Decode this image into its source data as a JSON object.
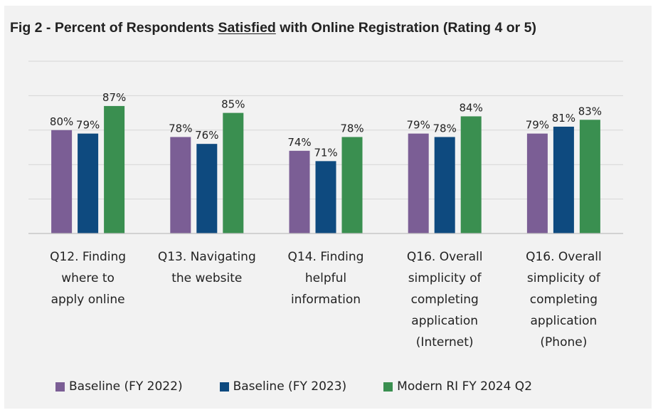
{
  "chart_data": {
    "type": "bar",
    "title_parts": {
      "before": "Fig 2 - Percent of Respondents ",
      "emphasis": "Satisfied",
      "after": " with Online Registration (Rating 4 or 5)"
    },
    "categories": [
      [
        "Q12. Finding",
        "where to",
        "apply online"
      ],
      [
        "Q13. Navigating",
        "the website"
      ],
      [
        "Q14. Finding",
        "helpful",
        "information"
      ],
      [
        "Q16. Overall",
        "simplicity of",
        "completing",
        "application",
        "(Internet)"
      ],
      [
        "Q16. Overall",
        "simplicity of",
        "completing",
        "application",
        "(Phone)"
      ]
    ],
    "series": [
      {
        "name": "Baseline (FY 2022)",
        "values": [
          80,
          78,
          74,
          79,
          79
        ],
        "labels": [
          "80%",
          "78%",
          "74%",
          "79%",
          "79%"
        ],
        "color": "#7b5e95"
      },
      {
        "name": "Baseline (FY 2023)",
        "values": [
          79,
          76,
          71,
          78,
          81
        ],
        "labels": [
          "79%",
          "76%",
          "71%",
          "78%",
          "81%"
        ],
        "color": "#0e4a7f"
      },
      {
        "name": "Modern RI FY 2024 Q2",
        "values": [
          87,
          85,
          78,
          84,
          83
        ],
        "labels": [
          "87%",
          "85%",
          "78%",
          "84%",
          "83%"
        ],
        "color": "#3a8f50"
      }
    ],
    "ylim": [
      50,
      100
    ],
    "gridlines": true,
    "legend_position": "bottom"
  }
}
